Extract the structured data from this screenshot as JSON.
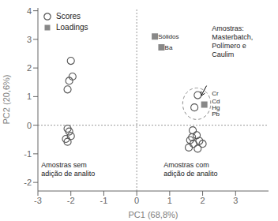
{
  "chart_data": {
    "type": "scatter",
    "xlabel": "PC1 (68,8%)",
    "ylabel": "PC2 (20,6%)",
    "xlim": [
      -3,
      4
    ],
    "ylim": [
      -2.3,
      4.1
    ],
    "xticks": [
      -3,
      -2,
      -1,
      0,
      1,
      2,
      3
    ],
    "yticks": [
      -2,
      -1,
      0,
      1,
      2,
      3,
      4
    ],
    "legend": "upper left",
    "series": [
      {
        "name": "Scores",
        "color": "#555555",
        "marker": "circle",
        "x": [
          -2.0,
          -1.95,
          -2.05,
          -2.1,
          -2.1,
          -2.05,
          -2.0,
          -2.15,
          -2.1,
          1.85,
          1.75,
          1.7,
          1.82,
          1.62,
          1.9,
          1.72,
          1.58,
          1.85,
          2.0,
          1.68
        ],
        "values": [
          2.25,
          1.7,
          1.55,
          1.25,
          -0.12,
          -0.22,
          -0.38,
          -0.48,
          -0.58,
          1.05,
          0.62,
          -0.18,
          -0.35,
          -0.52,
          -0.55,
          -0.65,
          -0.78,
          -0.82,
          -0.65,
          -0.42
        ]
      },
      {
        "name": "Loadings",
        "color": "#888888",
        "marker": "square",
        "x": [
          0.55,
          0.75,
          2.05
        ],
        "values": [
          3.1,
          2.72,
          0.72
        ]
      }
    ],
    "annotations": [
      {
        "text": "Amostras:\nMasterbatch,\nPolímero e\nCaulim",
        "x": 2.28,
        "y": 3.55
      },
      {
        "text": "Cr",
        "x": 2.28,
        "y": 1.12
      },
      {
        "text": "Cd",
        "x": 2.28,
        "y": 0.85
      },
      {
        "text": "Hg",
        "x": 2.28,
        "y": 0.62
      },
      {
        "text": "Pb",
        "x": 2.28,
        "y": 0.4
      },
      {
        "text": "Sólidos",
        "x": 0.65,
        "y": 3.1
      },
      {
        "text": "Ba",
        "x": 0.85,
        "y": 2.72
      },
      {
        "text": "Amostras sem\nadição de analito",
        "x": -2.9,
        "y": -1.55
      },
      {
        "text": "Amostras com\nadição de analito",
        "x": 0.82,
        "y": -1.55
      }
    ],
    "ellipse": {
      "center": [
        1.82,
        0.75
      ],
      "width": 0.85,
      "height": 1.1
    },
    "arrow": {
      "start": [
        2.12,
        1.38
      ],
      "end": [
        1.95,
        1.02
      ]
    }
  }
}
